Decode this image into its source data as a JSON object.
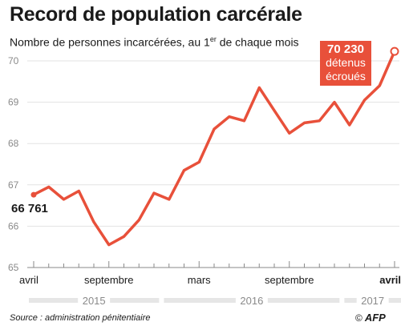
{
  "title": "Record de population carcérale",
  "subtitle_main": "Nombre de personnes incarcérées, au 1",
  "subtitle_sup": "er",
  "subtitle_end": " de chaque mois",
  "start_label": "66 761",
  "end_value": "70 230",
  "end_line1": "détenus",
  "end_line2": "écroués",
  "source": "Source : administration pénitentiaire",
  "copyright": "©",
  "logo_text": "AFP",
  "colors": {
    "line": "#e8503a",
    "axis": "#8a8a8a",
    "grid": "#e3e3e3",
    "year_bar": "#e6e6e6"
  },
  "chart_data": {
    "type": "line",
    "title": "Record de population carcérale",
    "subtitle": "Nombre de personnes incarcérées, au 1er de chaque mois",
    "x": [
      "2015-04",
      "2015-05",
      "2015-06",
      "2015-07",
      "2015-08",
      "2015-09",
      "2015-10",
      "2015-11",
      "2015-12",
      "2016-01",
      "2016-02",
      "2016-03",
      "2016-04",
      "2016-05",
      "2016-06",
      "2016-07",
      "2016-08",
      "2016-09",
      "2016-10",
      "2016-11",
      "2016-12",
      "2017-01",
      "2017-02",
      "2017-03",
      "2017-04"
    ],
    "unit": "milliers",
    "series": [
      {
        "values": [
          66.761,
          66.95,
          66.65,
          66.85,
          66.1,
          65.55,
          65.75,
          66.15,
          66.8,
          66.65,
          67.35,
          67.55,
          68.35,
          68.65,
          68.55,
          69.35,
          68.8,
          68.25,
          68.5,
          68.55,
          69.0,
          68.45,
          69.05,
          69.4,
          70.23
        ]
      }
    ],
    "ylim": [
      65,
      70
    ],
    "yticks": [
      "65",
      "66",
      "67",
      "68",
      "69",
      "70"
    ],
    "xtick_labels": [
      {
        "x": "2015-04",
        "label": "avril",
        "bold": false
      },
      {
        "x": "2015-09",
        "label": "septembre",
        "bold": false
      },
      {
        "x": "2016-03",
        "label": "mars",
        "bold": false
      },
      {
        "x": "2016-09",
        "label": "septembre",
        "bold": false
      },
      {
        "x": "2017-04",
        "label": "avril",
        "bold": true
      }
    ],
    "years": [
      {
        "label": "2015",
        "from": "2015-04",
        "to": "2015-12"
      },
      {
        "label": "2016",
        "from": "2016-01",
        "to": "2016-12"
      },
      {
        "label": "2017",
        "from": "2017-01",
        "to": "2017-04"
      }
    ],
    "annotations": [
      {
        "x": "2015-04",
        "text": "66 761"
      },
      {
        "x": "2017-04",
        "text": "70 230 détenus écroués"
      }
    ],
    "grid": true
  }
}
